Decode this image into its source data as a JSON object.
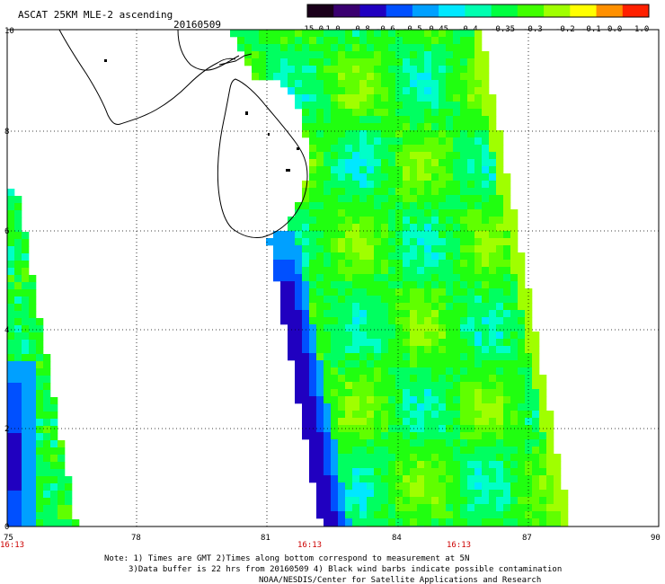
{
  "title": "ASCAT 25KM MLE-2 ascending",
  "date": "20160509",
  "colorbar": {
    "labels": [
      "-15.0",
      "-1.0",
      "-0.8",
      "-0.6",
      "-0.5",
      "-0.45",
      "-0.4",
      "-0.35",
      "-0.3",
      "-0.2",
      "-0.1",
      "0.0",
      "1.0"
    ],
    "colors": [
      "#1a001a",
      "#3a0070",
      "#2000c0",
      "#0050ff",
      "#00a0ff",
      "#00e8ff",
      "#00ffb0",
      "#00ff40",
      "#40ff00",
      "#a0ff00",
      "#ffff00",
      "#ff9000",
      "#ff2000"
    ]
  },
  "map": {
    "lon_range": [
      75,
      90
    ],
    "lat_range": [
      0,
      10
    ],
    "x_tick_labels": [
      "75",
      "78",
      "81",
      "84",
      "87",
      "90"
    ],
    "y_tick_labels": [
      "0",
      "2",
      "4",
      "6",
      "8",
      "10"
    ],
    "pass_time_labels": [
      "16:13",
      "16:13",
      "16:13"
    ],
    "time_color": "#cc0000"
  },
  "notes": {
    "line1": "Note: 1) Times are GMT 2)Times along bottom correspond to measurement at 5N",
    "line2": "3)Data buffer is 22 hrs from 20160509 4) Black wind barbs indicate possible contamination",
    "line3": "NOAA/NESDIS/Center for Satellite Applications and Research"
  }
}
